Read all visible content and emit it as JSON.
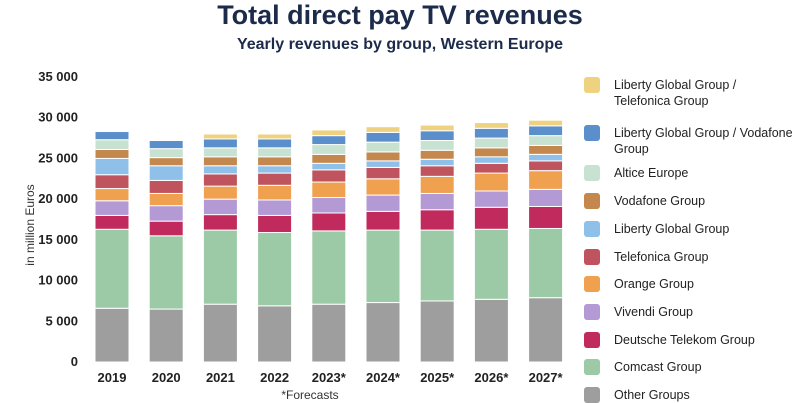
{
  "chart_data": {
    "type": "bar",
    "stacked": true,
    "title": "Total direct pay TV revenues",
    "subtitle": "Yearly revenues by group, Western Europe",
    "ylabel": "in million Euros",
    "xlabel": "",
    "footnote": "*Forecasts",
    "ylim": [
      0,
      35000
    ],
    "yticks": [
      {
        "value": 0,
        "label": "0"
      },
      {
        "value": 5000,
        "label": "5 000"
      },
      {
        "value": 10000,
        "label": "10 000"
      },
      {
        "value": 15000,
        "label": "15 000"
      },
      {
        "value": 20000,
        "label": "20 000"
      },
      {
        "value": 25000,
        "label": "25 000"
      },
      {
        "value": 30000,
        "label": "30 000"
      },
      {
        "value": 35000,
        "label": "35 000"
      }
    ],
    "categories": [
      "2019",
      "2020",
      "2021",
      "2022",
      "2023*",
      "2024*",
      "2025*",
      "2026*",
      "2027*"
    ],
    "series": [
      {
        "name": "Other Groups",
        "color": "#9e9e9e",
        "values": [
          6600,
          6500,
          7100,
          6900,
          7100,
          7300,
          7500,
          7700,
          7900
        ]
      },
      {
        "name": "Comcast Group",
        "color": "#9ccaa6",
        "values": [
          9700,
          9000,
          9100,
          9000,
          9000,
          8900,
          8700,
          8600,
          8500
        ]
      },
      {
        "name": "Deutsche Telekom Group",
        "color": "#c02a5c",
        "values": [
          1700,
          1800,
          1900,
          2100,
          2200,
          2300,
          2500,
          2700,
          2700
        ]
      },
      {
        "name": "Vivendi Group",
        "color": "#b39ad4",
        "values": [
          1800,
          1900,
          1900,
          1900,
          1900,
          2000,
          2000,
          2000,
          2100
        ]
      },
      {
        "name": "Orange Group",
        "color": "#f0a150",
        "values": [
          1500,
          1500,
          1600,
          1800,
          1900,
          2000,
          2100,
          2200,
          2300
        ]
      },
      {
        "name": "Telefonica Group",
        "color": "#c0545e",
        "values": [
          1700,
          1600,
          1500,
          1500,
          1500,
          1400,
          1300,
          1200,
          1200
        ]
      },
      {
        "name": "Liberty Global Group",
        "color": "#8fc0ea",
        "values": [
          2000,
          1800,
          1000,
          900,
          800,
          800,
          800,
          800,
          800
        ]
      },
      {
        "name": "Vodafone Group",
        "color": "#c4884e",
        "values": [
          1100,
          1000,
          1100,
          1100,
          1100,
          1100,
          1100,
          1100,
          1100
        ]
      },
      {
        "name": "Altice Europe",
        "color": "#c8e2d2",
        "values": [
          1200,
          1100,
          1100,
          1100,
          1200,
          1200,
          1200,
          1200,
          1200
        ]
      },
      {
        "name": "Liberty Global Group / Vodafone Group",
        "color": "#5b8fcb",
        "values": [
          1000,
          1000,
          1100,
          1100,
          1100,
          1200,
          1200,
          1200,
          1200
        ]
      },
      {
        "name": "Liberty Global Group / Telefonica Group",
        "color": "#efd27f",
        "values": [
          0,
          0,
          600,
          600,
          700,
          700,
          700,
          700,
          700
        ]
      }
    ],
    "legend_order": [
      "Liberty Global Group / Telefonica Group",
      "Liberty Global Group / Vodafone Group",
      "Altice Europe",
      "Vodafone Group",
      "Liberty Global Group",
      "Telefonica Group",
      "Orange Group",
      "Vivendi Group",
      "Deutsche Telekom Group",
      "Comcast Group",
      "Other Groups"
    ],
    "legend_position": "right",
    "grid": false
  }
}
